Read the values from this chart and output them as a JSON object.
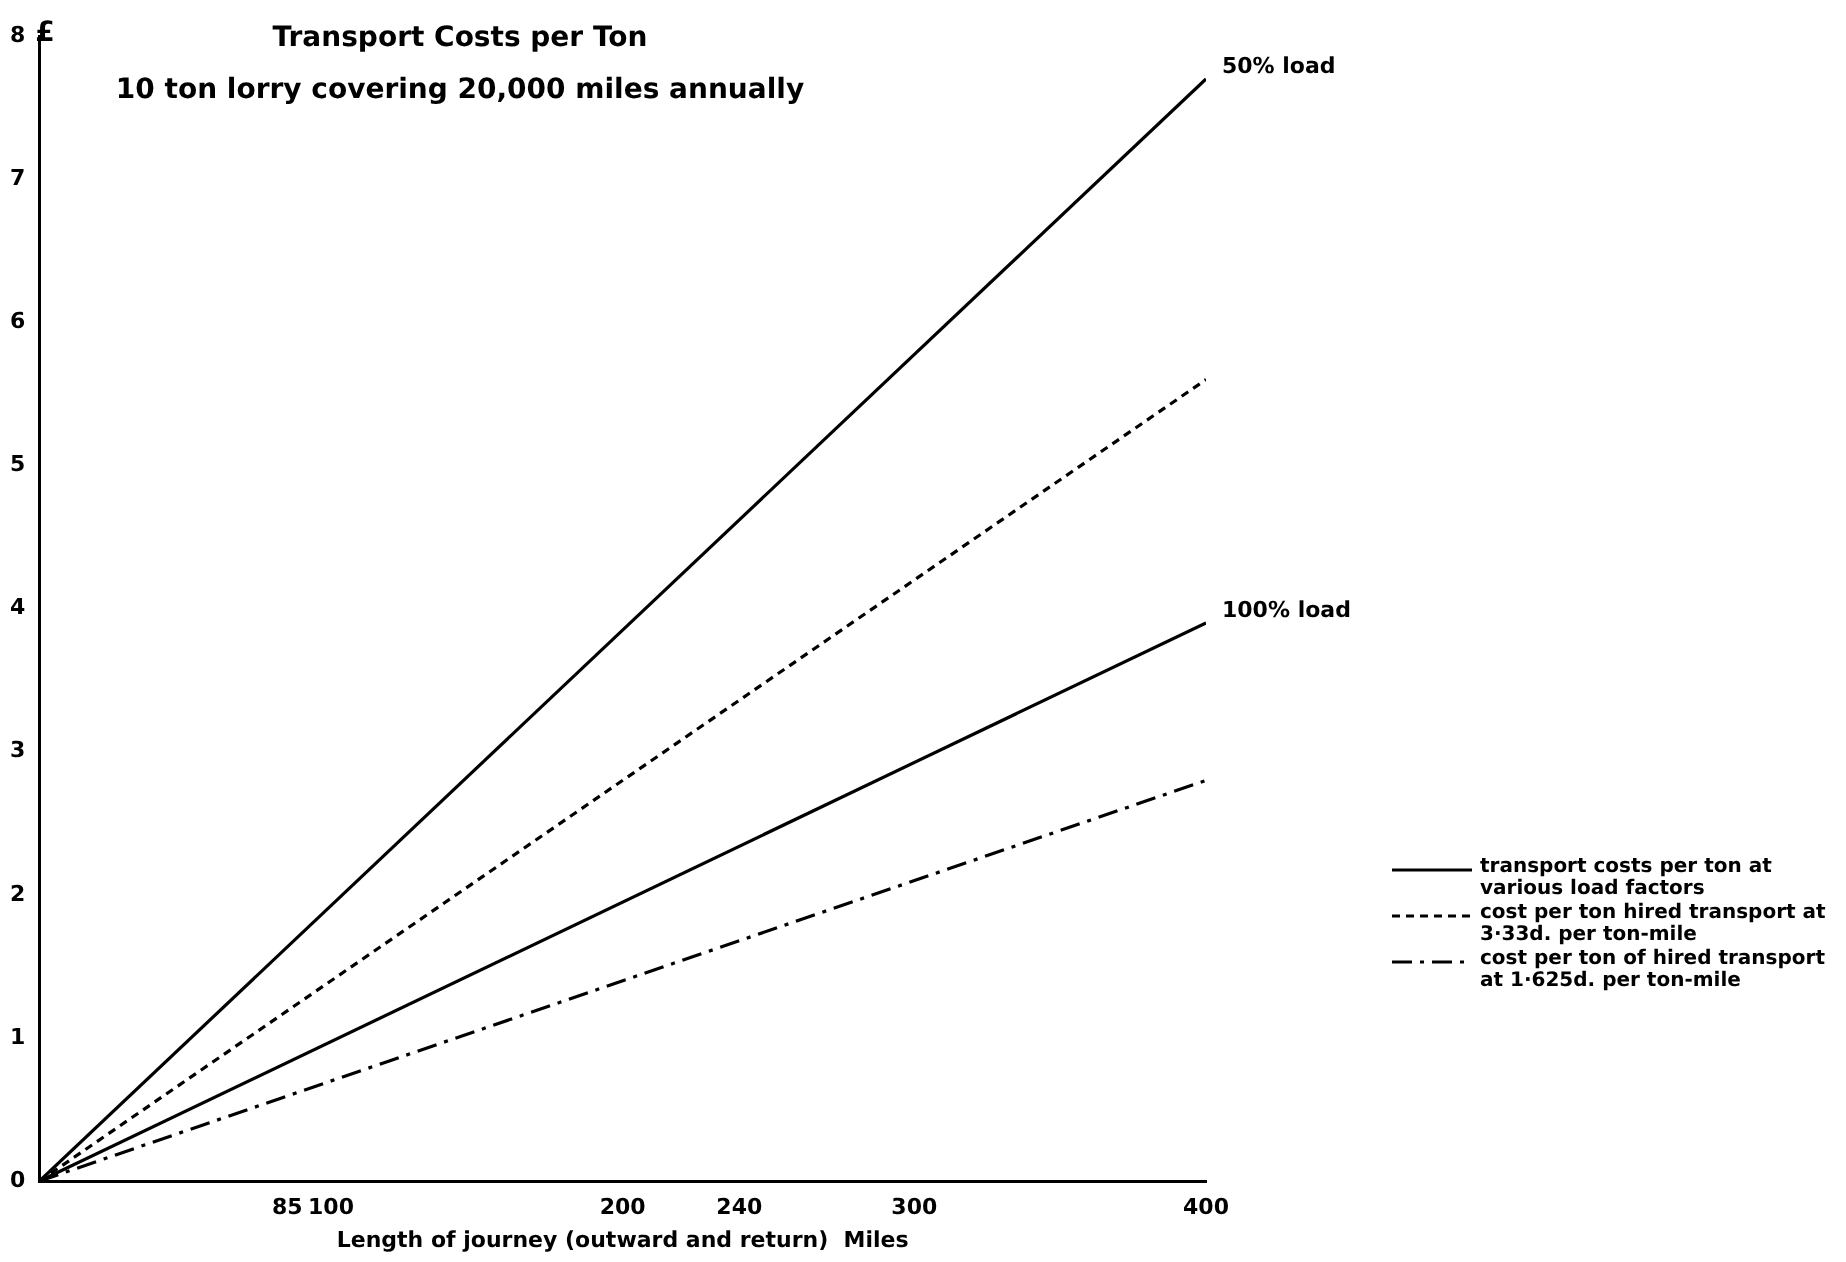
{
  "chart_data": {
    "type": "line",
    "title": "Transport Costs per Ton",
    "subtitle": "10 ton lorry covering 20,000 miles annually",
    "xlabel": "Length of journey (outward and return)  Miles",
    "ylabel": "£",
    "x": [
      0,
      400
    ],
    "series": [
      {
        "name": "transport costs per ton at various load factors",
        "color": "#000000",
        "values": [
          0,
          7.7
        ],
        "line_style": "solid"
      },
      {
        "color": "#000000",
        "values": [
          0,
          3.9
        ],
        "line_style": "solid"
      },
      {
        "name": "cost per ton hired transport at 3·33d. per ton-mile",
        "color": "#000000",
        "values": [
          0,
          5.6
        ],
        "line_style": "dashed"
      },
      {
        "name": "cost per ton of hired transport at 1·625d. per ton-mile",
        "color": "#000000",
        "values": [
          0,
          2.8
        ],
        "line_style": "dashdot"
      }
    ],
    "annotations": [
      {
        "text": "50% load",
        "x": 400,
        "y": 7.7
      },
      {
        "text": "100% load",
        "x": 400,
        "y": 3.9
      }
    ],
    "xlim": [
      0,
      400
    ],
    "xticks": [
      85,
      100,
      200,
      240,
      300,
      400
    ],
    "ylim": [
      0,
      8
    ],
    "yticks": [
      0,
      1,
      2,
      3,
      4,
      5,
      6,
      7,
      8
    ],
    "grid": false,
    "legend": "right",
    "marker": "none"
  }
}
